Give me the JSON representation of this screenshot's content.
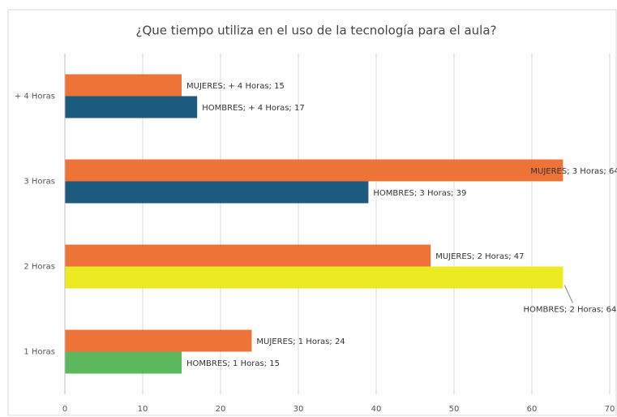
{
  "chart_data": {
    "type": "hbar",
    "title": "¿Que tiempo utiliza en el uso de la tecnología para el aula?",
    "categories": [
      "1 Horas",
      "2 Horas",
      "3 Horas",
      "+ 4 Horas"
    ],
    "series": [
      {
        "name": "MUJERES",
        "color": "#ee7337",
        "colors": [
          "#ee7337",
          "#ee7337",
          "#ee7337",
          "#ee7337"
        ],
        "values": [
          24,
          47,
          64,
          15
        ],
        "value_labels": [
          "MUJERES; 1 Horas; 24",
          "MUJERES; 2 Horas; 47",
          "MUJERES; 3 Horas; 64",
          "MUJERES; + 4 Horas; 15"
        ]
      },
      {
        "name": "HOMBRES",
        "color": "#1c5a7e",
        "colors": [
          "#5cb85c",
          "#ecea22",
          "#1c5a7e",
          "#1c5a7e"
        ],
        "values": [
          15,
          64,
          39,
          17
        ],
        "value_labels": [
          "HOMBRES; 1 Horas; 15",
          "HOMBRES; 2 Horas; 64",
          "HOMBRES; 3 Horas; 39",
          "HOMBRES; + 4 Horas; 17"
        ]
      }
    ],
    "xlim": [
      0,
      70
    ],
    "xticks": [
      0,
      10,
      20,
      30,
      40,
      50,
      60,
      70
    ],
    "grid": true
  }
}
